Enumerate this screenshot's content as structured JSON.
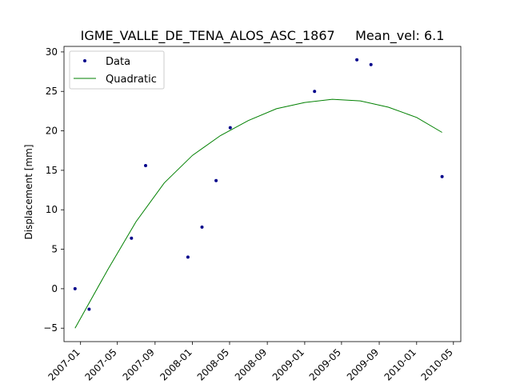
{
  "chart_data": {
    "type": "scatter",
    "title": "IGME_VALLE_DE_TENA_ALOS_ASC_1867     Mean_vel: 6.1",
    "xlabel": "",
    "ylabel": "Displacement [mm]",
    "x_tick_labels": [
      "2007-01",
      "2007-05",
      "2007-09",
      "2008-01",
      "2008-05",
      "2008-09",
      "2009-01",
      "2009-05",
      "2009-09",
      "2010-01",
      "2010-05"
    ],
    "y_tick_labels": [
      "−5",
      "0",
      "5",
      "10",
      "15",
      "20",
      "25",
      "30"
    ],
    "ylim": [
      -6.7,
      30.7
    ],
    "xlim": [
      "2006-11-08",
      "2010-05-25"
    ],
    "grid": false,
    "legend": {
      "position": "top-left",
      "entries": [
        "Data",
        "Quadratic"
      ]
    },
    "series": [
      {
        "name": "Data",
        "kind": "markers",
        "color": "#00008b",
        "points": [
          {
            "x": "2006-12-14",
            "y": 0.0
          },
          {
            "x": "2007-01-29",
            "y": -2.6
          },
          {
            "x": "2007-06-16",
            "y": 6.4
          },
          {
            "x": "2007-08-01",
            "y": 15.6
          },
          {
            "x": "2007-12-17",
            "y": 4.0
          },
          {
            "x": "2008-02-01",
            "y": 7.8
          },
          {
            "x": "2008-03-18",
            "y": 13.7
          },
          {
            "x": "2008-05-03",
            "y": 20.4
          },
          {
            "x": "2009-02-02",
            "y": 25.0
          },
          {
            "x": "2009-06-20",
            "y": 29.0
          },
          {
            "x": "2009-08-05",
            "y": 28.4
          },
          {
            "x": "2010-03-25",
            "y": 14.2
          }
        ]
      },
      {
        "name": "Quadratic",
        "kind": "line",
        "color": "#008000",
        "points": [
          {
            "x": "2006-12-14",
            "y": -5.0
          },
          {
            "x": "2007-04-01",
            "y": 2.5
          },
          {
            "x": "2007-07-01",
            "y": 8.5
          },
          {
            "x": "2007-10-01",
            "y": 13.4
          },
          {
            "x": "2008-01-01",
            "y": 16.9
          },
          {
            "x": "2008-04-01",
            "y": 19.4
          },
          {
            "x": "2008-07-01",
            "y": 21.3
          },
          {
            "x": "2008-10-01",
            "y": 22.8
          },
          {
            "x": "2009-01-01",
            "y": 23.6
          },
          {
            "x": "2009-04-01",
            "y": 24.0
          },
          {
            "x": "2009-07-01",
            "y": 23.8
          },
          {
            "x": "2009-10-01",
            "y": 23.0
          },
          {
            "x": "2010-01-01",
            "y": 21.7
          },
          {
            "x": "2010-03-25",
            "y": 19.8
          }
        ]
      }
    ]
  }
}
